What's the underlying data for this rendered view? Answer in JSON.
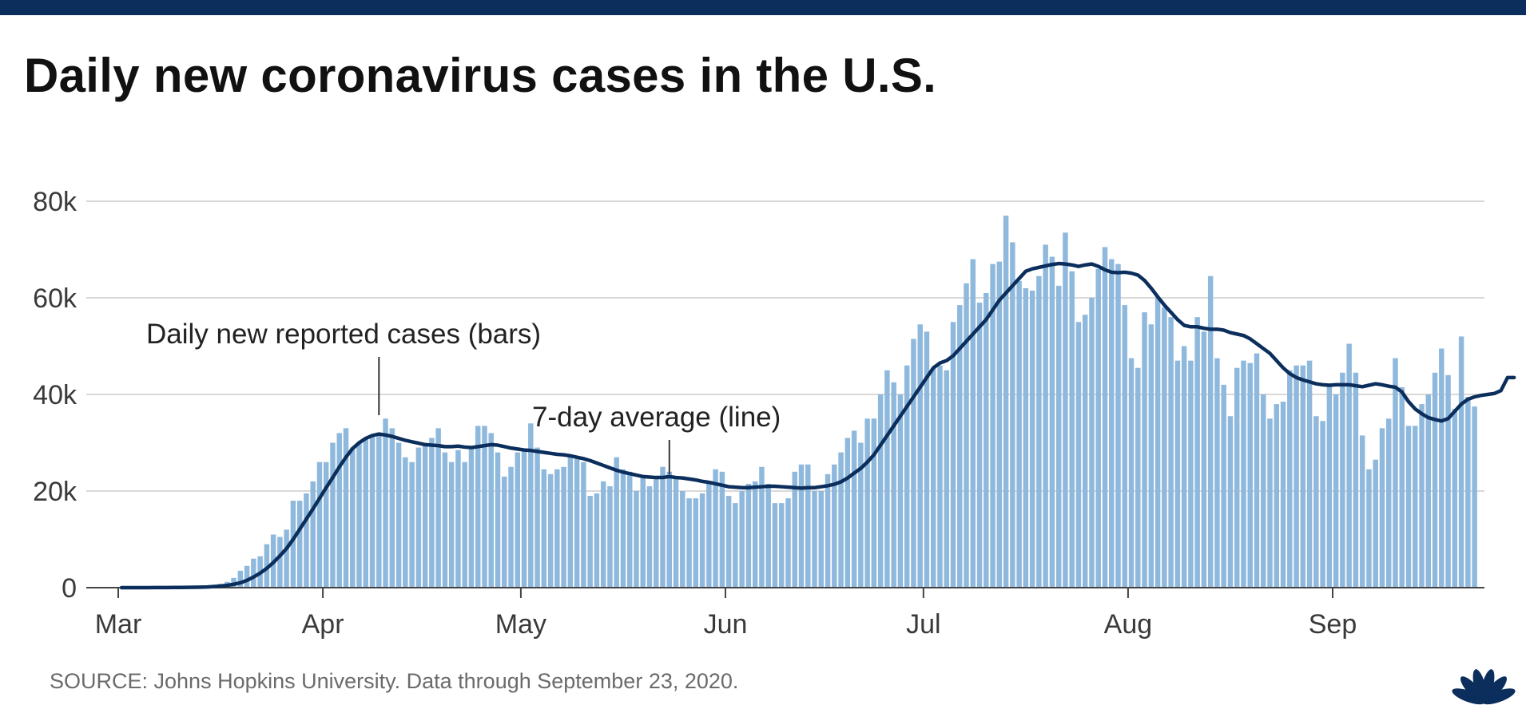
{
  "header": {
    "title": "Daily new coronavirus cases in the U.S."
  },
  "footer": {
    "source": "SOURCE: Johns Hopkins University. Data through September 23, 2020."
  },
  "logo": {
    "text": "CNBC",
    "icon": "cnbc-peacock-icon",
    "colors": [
      "#e8a33d",
      "#d84b3f",
      "#7b3f8f",
      "#1f6fb5",
      "#2f9b5a",
      "#f0c419"
    ]
  },
  "colors": {
    "bars": "#8fb8dd",
    "line": "#0b2e5c",
    "top_bar": "#0b2e5c",
    "grid": "#d9d9d9"
  },
  "chart_data": {
    "type": "bar",
    "x_start": "2020-03-01",
    "x_end": "2020-09-23",
    "xticks": [
      {
        "date": "2020-03-01",
        "label": "Mar"
      },
      {
        "date": "2020-04-01",
        "label": "Apr"
      },
      {
        "date": "2020-05-01",
        "label": "May"
      },
      {
        "date": "2020-06-01",
        "label": "Jun"
      },
      {
        "date": "2020-07-01",
        "label": "Jul"
      },
      {
        "date": "2020-08-01",
        "label": "Aug"
      },
      {
        "date": "2020-09-01",
        "label": "Sep"
      }
    ],
    "yticks": [
      {
        "value": 0,
        "label": "0"
      },
      {
        "value": 20000,
        "label": "20k"
      },
      {
        "value": 40000,
        "label": "40k"
      },
      {
        "value": 60000,
        "label": "60k"
      },
      {
        "value": 80000,
        "label": "80k"
      }
    ],
    "ylim": [
      0,
      80000
    ],
    "grid": true,
    "series": [
      {
        "type": "bar",
        "values": [
          3,
          5,
          10,
          10,
          20,
          30,
          40,
          60,
          80,
          100,
          120,
          200,
          300,
          400,
          600,
          800,
          1200,
          2000,
          3500,
          4500,
          6000,
          6500,
          9000,
          11000,
          10500,
          12000,
          18000,
          18000,
          19500,
          22000,
          26000,
          26000,
          30000,
          32000,
          33000,
          29000,
          30000,
          31000,
          31500,
          32000,
          35000,
          33000,
          30000,
          27000,
          26000,
          29000,
          29500,
          31000,
          33000,
          28000,
          26000,
          28500,
          26000,
          29000,
          33500,
          33500,
          32000,
          28000,
          23000,
          25000,
          28000,
          28500,
          34000,
          29000,
          24500,
          23500,
          24500,
          25000,
          27500,
          27000,
          26000,
          19000,
          19500,
          22000,
          21000,
          27000,
          24500,
          24000,
          20000,
          23000,
          21000,
          23000,
          25000,
          24000,
          23000,
          20000,
          18500,
          18500,
          19500,
          22000,
          24500,
          24000,
          19000,
          17500,
          20000,
          21500,
          22000,
          25000,
          21500,
          17500,
          17500,
          18500,
          24000,
          25500,
          25500,
          20000,
          20000,
          23500,
          25500,
          28000,
          31000,
          32500,
          30000,
          35000,
          35000,
          40000,
          45000,
          42500,
          40000,
          46000,
          51500,
          54500,
          53000,
          45500,
          46000,
          45000,
          55000,
          58500,
          63000,
          68000,
          59000,
          61000,
          67000,
          67500,
          77000,
          71500,
          63500,
          62000,
          61500,
          64500,
          71000,
          68500,
          62500,
          73500,
          65500,
          55000,
          56500,
          60000,
          66000,
          70500,
          68000,
          67000,
          58500,
          47500,
          45500,
          57000,
          54500,
          60000,
          58000,
          56000,
          47000,
          50000,
          47000,
          56000,
          53000,
          64500,
          47500,
          42000,
          35500,
          45500,
          47000,
          46500,
          48500,
          40000,
          35000,
          38000,
          38500,
          45000,
          46000,
          46000,
          47000,
          35500,
          34500,
          42000,
          40000,
          44500,
          50500,
          44500,
          31500,
          24500,
          26500,
          33000,
          35000,
          47500,
          41500,
          33500,
          33500,
          38000,
          40000,
          44500,
          49500,
          44000,
          37000,
          52000,
          39500,
          37500
        ]
      },
      {
        "type": "line",
        "values": [
          3,
          3,
          4,
          6,
          8,
          12,
          17,
          24,
          33,
          45,
          60,
          80,
          110,
          150,
          230,
          330,
          480,
          700,
          1000,
          1500,
          2200,
          3000,
          4000,
          5200,
          6600,
          8100,
          10000,
          12100,
          14200,
          16300,
          18500,
          20700,
          22800,
          25000,
          27000,
          28800,
          30000,
          30900,
          31500,
          31800,
          31600,
          31300,
          30900,
          30500,
          30200,
          29900,
          29600,
          29500,
          29400,
          29200,
          29200,
          29300,
          29100,
          29000,
          29200,
          29400,
          29600,
          29500,
          29200,
          28900,
          28700,
          28500,
          28400,
          28200,
          28000,
          27800,
          27600,
          27500,
          27300,
          27000,
          26700,
          26300,
          25800,
          25300,
          24800,
          24300,
          23900,
          23600,
          23300,
          23000,
          22900,
          22800,
          22800,
          23000,
          22800,
          22700,
          22500,
          22300,
          22000,
          21800,
          21500,
          21200,
          20900,
          20800,
          20700,
          20700,
          20800,
          20900,
          21000,
          21000,
          20900,
          20800,
          20700,
          20600,
          20700,
          20700,
          20900,
          21100,
          21400,
          21900,
          22700,
          23700,
          24700,
          26000,
          27500,
          29500,
          31500,
          33500,
          35500,
          37500,
          39500,
          41500,
          43500,
          45500,
          46500,
          47000,
          48000,
          49500,
          51000,
          52500,
          54000,
          55500,
          57500,
          59500,
          61000,
          62500,
          64000,
          65500,
          66000,
          66300,
          66600,
          66900,
          67100,
          67000,
          66800,
          66500,
          66800,
          67000,
          66500,
          65800,
          65300,
          65200,
          65300,
          65100,
          64700,
          63600,
          62000,
          60200,
          58500,
          57000,
          55500,
          54300,
          54000,
          54000,
          53700,
          53500,
          53500,
          53300,
          52800,
          52500,
          52200,
          51500,
          50500,
          49500,
          48500,
          47000,
          45500,
          44300,
          43500,
          43000,
          42600,
          42200,
          42000,
          41900,
          42000,
          42000,
          42000,
          41800,
          41600,
          41900,
          42200,
          42000,
          41700,
          41500,
          40500,
          38500,
          37000,
          36000,
          35200,
          34800,
          34500,
          35000,
          36500,
          38000,
          39000,
          39500,
          39800,
          40000,
          40200,
          40800,
          43500,
          43500
        ]
      }
    ],
    "annotations": [
      {
        "text": "Daily new reported cases (bars)",
        "date": "2020-04-09"
      },
      {
        "text": "7-day average (line)",
        "date": "2020-05-23"
      }
    ]
  }
}
